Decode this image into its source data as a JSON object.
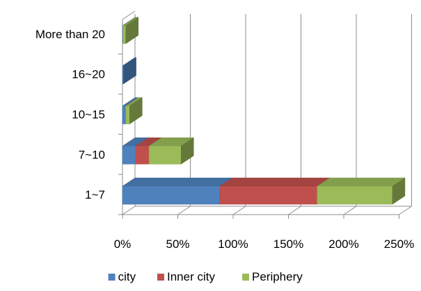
{
  "chart_data": {
    "type": "bar",
    "orientation": "horizontal",
    "stacked": true,
    "style": "3d",
    "categories": [
      "1~7",
      "7~10",
      "10~15",
      "16~20",
      "More than 20"
    ],
    "series": [
      {
        "name": "city",
        "values": [
          88,
          12,
          3,
          1,
          0.5
        ],
        "color": "#4f81bd"
      },
      {
        "name": "Inner city",
        "values": [
          88,
          12,
          0,
          0,
          0
        ],
        "color": "#c0504d"
      },
      {
        "name": "Periphery",
        "values": [
          68,
          29,
          3.5,
          0,
          2.5
        ],
        "color": "#9bbb59"
      }
    ],
    "xticks": [
      "0%",
      "50%",
      "100%",
      "150%",
      "200%",
      "250%"
    ],
    "xlim": [
      0,
      250
    ],
    "grid": true,
    "legend": "bottom"
  }
}
